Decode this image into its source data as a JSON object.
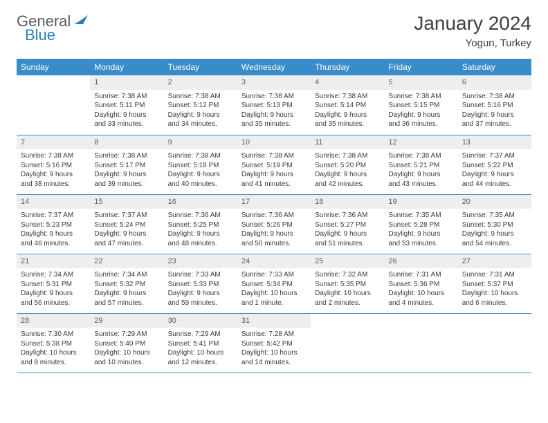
{
  "logo": {
    "text1": "General",
    "text2": "Blue"
  },
  "title": "January 2024",
  "location": "Yogun, Turkey",
  "colors": {
    "header_bg": "#3a8cc9",
    "header_fg": "#ffffff",
    "daynum_bg": "#eceef0",
    "rule": "#3a8cc9",
    "logo_gray": "#5b5b5b",
    "logo_blue": "#2b7fba"
  },
  "weekdays": [
    "Sunday",
    "Monday",
    "Tuesday",
    "Wednesday",
    "Thursday",
    "Friday",
    "Saturday"
  ],
  "first_weekday_index": 1,
  "days": [
    {
      "n": 1,
      "sunrise": "7:38 AM",
      "sunset": "5:11 PM",
      "dl_h": 9,
      "dl_m": 33
    },
    {
      "n": 2,
      "sunrise": "7:38 AM",
      "sunset": "5:12 PM",
      "dl_h": 9,
      "dl_m": 34
    },
    {
      "n": 3,
      "sunrise": "7:38 AM",
      "sunset": "5:13 PM",
      "dl_h": 9,
      "dl_m": 35
    },
    {
      "n": 4,
      "sunrise": "7:38 AM",
      "sunset": "5:14 PM",
      "dl_h": 9,
      "dl_m": 35
    },
    {
      "n": 5,
      "sunrise": "7:38 AM",
      "sunset": "5:15 PM",
      "dl_h": 9,
      "dl_m": 36
    },
    {
      "n": 6,
      "sunrise": "7:38 AM",
      "sunset": "5:16 PM",
      "dl_h": 9,
      "dl_m": 37
    },
    {
      "n": 7,
      "sunrise": "7:38 AM",
      "sunset": "5:16 PM",
      "dl_h": 9,
      "dl_m": 38
    },
    {
      "n": 8,
      "sunrise": "7:38 AM",
      "sunset": "5:17 PM",
      "dl_h": 9,
      "dl_m": 39
    },
    {
      "n": 9,
      "sunrise": "7:38 AM",
      "sunset": "5:18 PM",
      "dl_h": 9,
      "dl_m": 40
    },
    {
      "n": 10,
      "sunrise": "7:38 AM",
      "sunset": "5:19 PM",
      "dl_h": 9,
      "dl_m": 41
    },
    {
      "n": 11,
      "sunrise": "7:38 AM",
      "sunset": "5:20 PM",
      "dl_h": 9,
      "dl_m": 42
    },
    {
      "n": 12,
      "sunrise": "7:38 AM",
      "sunset": "5:21 PM",
      "dl_h": 9,
      "dl_m": 43
    },
    {
      "n": 13,
      "sunrise": "7:37 AM",
      "sunset": "5:22 PM",
      "dl_h": 9,
      "dl_m": 44
    },
    {
      "n": 14,
      "sunrise": "7:37 AM",
      "sunset": "5:23 PM",
      "dl_h": 9,
      "dl_m": 46
    },
    {
      "n": 15,
      "sunrise": "7:37 AM",
      "sunset": "5:24 PM",
      "dl_h": 9,
      "dl_m": 47
    },
    {
      "n": 16,
      "sunrise": "7:36 AM",
      "sunset": "5:25 PM",
      "dl_h": 9,
      "dl_m": 48
    },
    {
      "n": 17,
      "sunrise": "7:36 AM",
      "sunset": "5:26 PM",
      "dl_h": 9,
      "dl_m": 50
    },
    {
      "n": 18,
      "sunrise": "7:36 AM",
      "sunset": "5:27 PM",
      "dl_h": 9,
      "dl_m": 51
    },
    {
      "n": 19,
      "sunrise": "7:35 AM",
      "sunset": "5:28 PM",
      "dl_h": 9,
      "dl_m": 53
    },
    {
      "n": 20,
      "sunrise": "7:35 AM",
      "sunset": "5:30 PM",
      "dl_h": 9,
      "dl_m": 54
    },
    {
      "n": 21,
      "sunrise": "7:34 AM",
      "sunset": "5:31 PM",
      "dl_h": 9,
      "dl_m": 56
    },
    {
      "n": 22,
      "sunrise": "7:34 AM",
      "sunset": "5:32 PM",
      "dl_h": 9,
      "dl_m": 57
    },
    {
      "n": 23,
      "sunrise": "7:33 AM",
      "sunset": "5:33 PM",
      "dl_h": 9,
      "dl_m": 59
    },
    {
      "n": 24,
      "sunrise": "7:33 AM",
      "sunset": "5:34 PM",
      "dl_h": 10,
      "dl_m": 1
    },
    {
      "n": 25,
      "sunrise": "7:32 AM",
      "sunset": "5:35 PM",
      "dl_h": 10,
      "dl_m": 2
    },
    {
      "n": 26,
      "sunrise": "7:31 AM",
      "sunset": "5:36 PM",
      "dl_h": 10,
      "dl_m": 4
    },
    {
      "n": 27,
      "sunrise": "7:31 AM",
      "sunset": "5:37 PM",
      "dl_h": 10,
      "dl_m": 6
    },
    {
      "n": 28,
      "sunrise": "7:30 AM",
      "sunset": "5:38 PM",
      "dl_h": 10,
      "dl_m": 8
    },
    {
      "n": 29,
      "sunrise": "7:29 AM",
      "sunset": "5:40 PM",
      "dl_h": 10,
      "dl_m": 10
    },
    {
      "n": 30,
      "sunrise": "7:29 AM",
      "sunset": "5:41 PM",
      "dl_h": 10,
      "dl_m": 12
    },
    {
      "n": 31,
      "sunrise": "7:28 AM",
      "sunset": "5:42 PM",
      "dl_h": 10,
      "dl_m": 14
    }
  ],
  "labels": {
    "sunrise": "Sunrise: ",
    "sunset": "Sunset: ",
    "daylight_prefix": "Daylight: ",
    "hours_word": " hours",
    "and_word": "and ",
    "minute_word": " minute.",
    "minutes_word": " minutes."
  }
}
